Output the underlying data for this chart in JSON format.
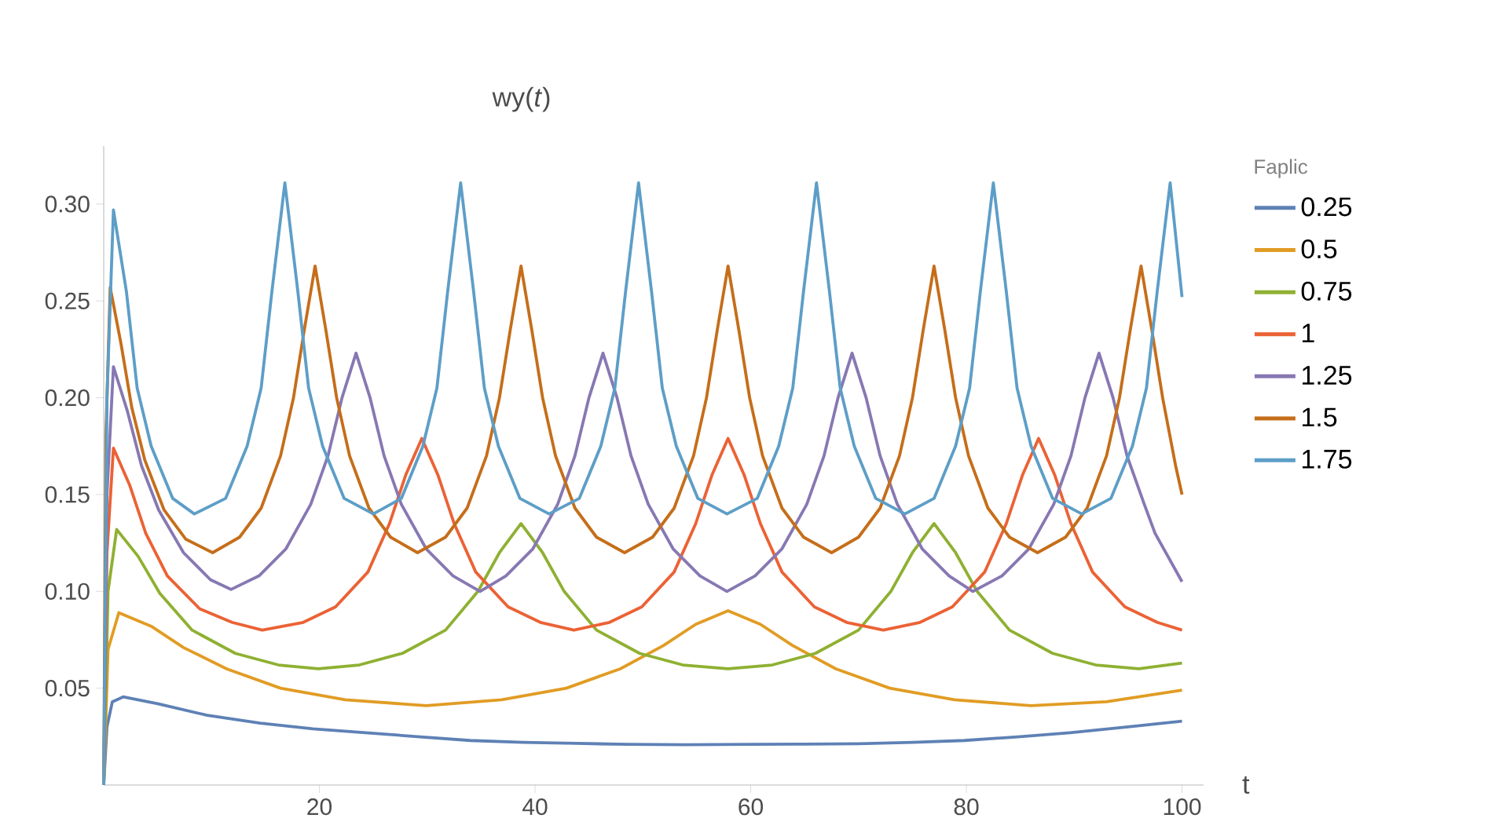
{
  "chart_data": {
    "type": "line",
    "title": "wy(*t*)",
    "xlabel": "t",
    "legend_title": "Faplic",
    "legend": "right",
    "xlim": [
      0,
      102
    ],
    "ylim": [
      0,
      0.33
    ],
    "xticks": [
      20,
      40,
      60,
      80,
      100
    ],
    "yticks": [
      {
        "value": 0.05,
        "label": "0.05"
      },
      {
        "value": 0.1,
        "label": "0.10"
      },
      {
        "value": 0.15,
        "label": "0.15"
      },
      {
        "value": 0.2,
        "label": "0.20"
      },
      {
        "value": 0.25,
        "label": "0.25"
      },
      {
        "value": 0.3,
        "label": "0.30"
      }
    ],
    "series": [
      {
        "name": "0.25",
        "color": "#5e81b5",
        "x": [
          0,
          0.3,
          0.8,
          1.8,
          5,
          9.6,
          14.5,
          19.4,
          24.3,
          29.1,
          34,
          38.9,
          43.8,
          48.6,
          54,
          60,
          65,
          70,
          75,
          79.8,
          85,
          89.6,
          95,
          100
        ],
        "values": [
          0,
          0.03,
          0.043,
          0.0455,
          0.042,
          0.036,
          0.032,
          0.029,
          0.027,
          0.025,
          0.023,
          0.022,
          0.0215,
          0.021,
          0.0208,
          0.021,
          0.0211,
          0.0213,
          0.022,
          0.023,
          0.025,
          0.027,
          0.03,
          0.033
        ]
      },
      {
        "name": "0.5",
        "color": "#e19c24",
        "x": [
          0,
          0.4,
          1.4,
          4.4,
          7.4,
          11.4,
          16.4,
          22.4,
          29.9,
          36.9,
          42.9,
          47.9,
          51.9,
          54.9,
          57.9,
          60.9,
          63.9,
          67.9,
          72.9,
          78.9,
          86,
          93,
          100
        ],
        "values": [
          0,
          0.07,
          0.089,
          0.082,
          0.071,
          0.06,
          0.05,
          0.044,
          0.041,
          0.044,
          0.05,
          0.06,
          0.072,
          0.083,
          0.09,
          0.083,
          0.072,
          0.06,
          0.05,
          0.044,
          0.041,
          0.043,
          0.049
        ]
      },
      {
        "name": "0.75",
        "color": "#8fb032",
        "x": [
          0,
          0.4,
          1.2,
          3.2,
          5.2,
          8.2,
          12.2,
          16.2,
          19.9,
          23.7,
          27.7,
          31.7,
          34.7,
          36.7,
          38.7,
          40.7,
          42.7,
          45.7,
          49.7,
          53.7,
          57.9,
          62,
          66,
          70,
          73,
          75,
          77,
          79,
          81,
          84,
          88,
          92,
          96,
          100
        ],
        "values": [
          0,
          0.1,
          0.132,
          0.118,
          0.099,
          0.08,
          0.068,
          0.062,
          0.06,
          0.062,
          0.068,
          0.08,
          0.1,
          0.12,
          0.135,
          0.12,
          0.1,
          0.08,
          0.068,
          0.062,
          0.06,
          0.062,
          0.068,
          0.08,
          0.1,
          0.12,
          0.135,
          0.12,
          0.1,
          0.08,
          0.068,
          0.062,
          0.06,
          0.063
        ]
      },
      {
        "name": "1",
        "color": "#eb6235",
        "x": [
          0,
          0.3,
          0.9,
          2.4,
          3.9,
          5.9,
          8.9,
          11.9,
          14.7,
          18.5,
          21.5,
          24.5,
          26.5,
          28,
          29.5,
          31,
          32.5,
          34.5,
          37.5,
          40.5,
          43.6,
          46.9,
          49.9,
          52.9,
          54.9,
          56.4,
          57.9,
          59.4,
          60.9,
          62.9,
          65.9,
          68.9,
          72.3,
          75.7,
          78.7,
          81.7,
          83.7,
          85.2,
          86.7,
          88.2,
          89.7,
          91.7,
          94.7,
          97.7,
          100
        ],
        "values": [
          0,
          0.12,
          0.174,
          0.155,
          0.13,
          0.108,
          0.091,
          0.084,
          0.08,
          0.084,
          0.092,
          0.11,
          0.135,
          0.16,
          0.179,
          0.16,
          0.135,
          0.11,
          0.092,
          0.084,
          0.08,
          0.084,
          0.092,
          0.11,
          0.135,
          0.16,
          0.179,
          0.16,
          0.135,
          0.11,
          0.092,
          0.084,
          0.08,
          0.084,
          0.092,
          0.11,
          0.135,
          0.16,
          0.179,
          0.16,
          0.135,
          0.11,
          0.092,
          0.084,
          0.08
        ]
      },
      {
        "name": "1.25",
        "color": "#8778b3",
        "x": [
          0,
          0.3,
          0.9,
          2.2,
          3.5,
          5.1,
          7.4,
          9.9,
          11.8,
          14.4,
          16.9,
          19.2,
          20.8,
          22.1,
          23.4,
          24.7,
          26,
          27.6,
          29.9,
          32.4,
          34.9,
          37.3,
          39.8,
          42.1,
          43.7,
          45,
          46.3,
          47.6,
          48.9,
          50.5,
          52.8,
          55.3,
          57.8,
          60.4,
          62.9,
          65.2,
          66.8,
          68.1,
          69.4,
          70.7,
          72,
          73.6,
          75.9,
          78.4,
          80.6,
          83.3,
          85.8,
          88.1,
          89.7,
          91,
          92.3,
          93.6,
          94.9,
          96.5,
          97.5,
          100
        ],
        "values": [
          0,
          0.15,
          0.216,
          0.193,
          0.165,
          0.142,
          0.12,
          0.106,
          0.101,
          0.108,
          0.122,
          0.145,
          0.17,
          0.2,
          0.223,
          0.2,
          0.17,
          0.145,
          0.122,
          0.108,
          0.1,
          0.108,
          0.122,
          0.145,
          0.17,
          0.2,
          0.223,
          0.2,
          0.17,
          0.145,
          0.122,
          0.108,
          0.1,
          0.108,
          0.122,
          0.145,
          0.17,
          0.2,
          0.223,
          0.2,
          0.17,
          0.145,
          0.122,
          0.108,
          0.1,
          0.108,
          0.122,
          0.145,
          0.17,
          0.2,
          0.223,
          0.2,
          0.17,
          0.145,
          0.13,
          0.105
        ]
      },
      {
        "name": "1.5",
        "color": "#c56e1a",
        "x": [
          0,
          0.2,
          0.6,
          1.6,
          2.6,
          3.8,
          5.6,
          7.6,
          10.1,
          12.6,
          14.6,
          16.4,
          17.6,
          18.6,
          19.6,
          20.6,
          21.6,
          22.8,
          24.6,
          26.6,
          29.1,
          31.7,
          33.7,
          35.5,
          36.7,
          37.7,
          38.7,
          39.7,
          40.7,
          41.9,
          43.7,
          45.7,
          48.3,
          50.9,
          52.9,
          54.7,
          55.9,
          56.9,
          57.9,
          58.9,
          59.9,
          61.1,
          62.9,
          64.9,
          67.5,
          70,
          72,
          73.8,
          75,
          76,
          77,
          78,
          79,
          80.2,
          82,
          84,
          86.6,
          89.2,
          91.2,
          93,
          94.2,
          95.2,
          96.2,
          97.2,
          98.2,
          99.4,
          100
        ],
        "values": [
          0,
          0.18,
          0.257,
          0.228,
          0.195,
          0.168,
          0.142,
          0.127,
          0.12,
          0.128,
          0.143,
          0.17,
          0.2,
          0.235,
          0.268,
          0.235,
          0.2,
          0.17,
          0.143,
          0.128,
          0.12,
          0.128,
          0.143,
          0.17,
          0.2,
          0.235,
          0.268,
          0.235,
          0.2,
          0.17,
          0.143,
          0.128,
          0.12,
          0.128,
          0.143,
          0.17,
          0.2,
          0.235,
          0.268,
          0.235,
          0.2,
          0.17,
          0.143,
          0.128,
          0.12,
          0.128,
          0.143,
          0.17,
          0.2,
          0.235,
          0.268,
          0.235,
          0.2,
          0.17,
          0.143,
          0.128,
          0.12,
          0.128,
          0.143,
          0.17,
          0.2,
          0.235,
          0.268,
          0.235,
          0.2,
          0.165,
          0.15
        ]
      },
      {
        "name": "1.75",
        "color": "#5d9ec7",
        "x": [
          0,
          0.3,
          0.9,
          2.1,
          3.1,
          4.4,
          6.4,
          8.4,
          11.3,
          13.3,
          14.6,
          15.6,
          16.8,
          18,
          19,
          20.3,
          22.3,
          25,
          27.6,
          29.6,
          30.9,
          31.9,
          33.1,
          34.3,
          35.3,
          36.6,
          38.6,
          41.3,
          44.1,
          46.1,
          47.4,
          48.4,
          49.6,
          50.8,
          51.8,
          53.1,
          55.1,
          57.8,
          60.6,
          62.6,
          63.9,
          64.9,
          66.1,
          67.3,
          68.3,
          69.6,
          71.6,
          74.3,
          77,
          79,
          80.3,
          81.3,
          82.5,
          83.7,
          84.7,
          86,
          88,
          90.7,
          93.4,
          95.4,
          96.7,
          97.7,
          98.9,
          100
        ],
        "values": [
          0,
          0.2,
          0.297,
          0.255,
          0.205,
          0.175,
          0.148,
          0.14,
          0.148,
          0.175,
          0.205,
          0.255,
          0.311,
          0.255,
          0.205,
          0.175,
          0.148,
          0.14,
          0.148,
          0.175,
          0.205,
          0.255,
          0.311,
          0.255,
          0.205,
          0.175,
          0.148,
          0.14,
          0.148,
          0.175,
          0.205,
          0.255,
          0.311,
          0.255,
          0.205,
          0.175,
          0.148,
          0.14,
          0.148,
          0.175,
          0.205,
          0.255,
          0.311,
          0.255,
          0.205,
          0.175,
          0.148,
          0.14,
          0.148,
          0.175,
          0.205,
          0.255,
          0.311,
          0.255,
          0.205,
          0.175,
          0.148,
          0.14,
          0.148,
          0.175,
          0.205,
          0.255,
          0.311,
          0.252
        ]
      }
    ]
  }
}
